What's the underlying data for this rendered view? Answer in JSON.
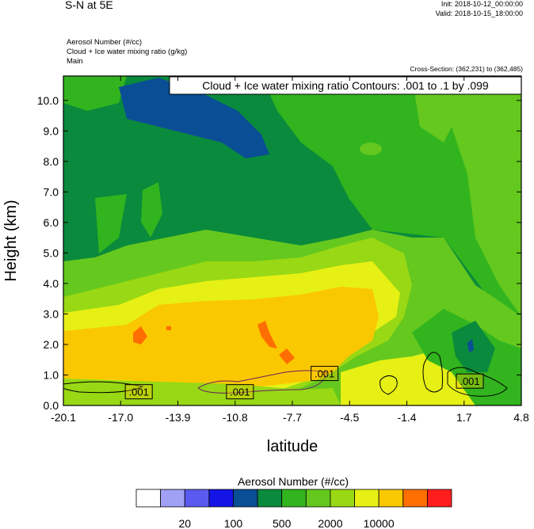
{
  "header": {
    "title": "S-N at 5E",
    "init": "Init: 2018-10-12_00:00:00",
    "valid": "Valid: 2018-10-15_18:00:00",
    "fields": [
      "Aerosol Number   (#/cc)",
      "Cloud + Ice water mixing ratio   (g/kg)",
      "Main"
    ],
    "cross_section": "Cross-Section: (362,231) to (362,485)"
  },
  "chart_data": {
    "type": "heatmap",
    "xlabel": "latitude",
    "ylabel": "Height (km)",
    "x_ticks": [
      "-20.1",
      "-17.0",
      "-13.9",
      "-10.8",
      "-7.7",
      "-4.5",
      "-1.4",
      "1.7",
      "4.8"
    ],
    "y_ticks": [
      "0.0",
      "1.0",
      "2.0",
      "3.0",
      "4.0",
      "5.0",
      "6.0",
      "7.0",
      "8.0",
      "9.0",
      "10.0"
    ],
    "xlim": [
      -20.1,
      4.8
    ],
    "ylim": [
      0.0,
      10.8
    ],
    "contour_info": "Cloud + Ice water mixing ratio Contours: .001 to .1 by .099",
    "contour_labels": [
      {
        "text": ".001",
        "lat": -16.0,
        "height": 0.45
      },
      {
        "text": ".001",
        "lat": -10.5,
        "height": 0.45
      },
      {
        "text": ".001",
        "lat": -5.9,
        "height": 1.05
      },
      {
        "text": ".001",
        "lat": 2.0,
        "height": 0.8
      }
    ],
    "colorbar": {
      "title": "Aerosol Number  (#/cc)",
      "colors": [
        "#ffffff",
        "#a0a0f5",
        "#5a5af0",
        "#1414e6",
        "#0a4e96",
        "#0a8a3c",
        "#32b41e",
        "#64c81e",
        "#98d814",
        "#e6f014",
        "#fac800",
        "#ff6e00",
        "#ff1e1e"
      ],
      "labels": [
        "20",
        "100",
        "500",
        "2000",
        "10000"
      ]
    }
  }
}
